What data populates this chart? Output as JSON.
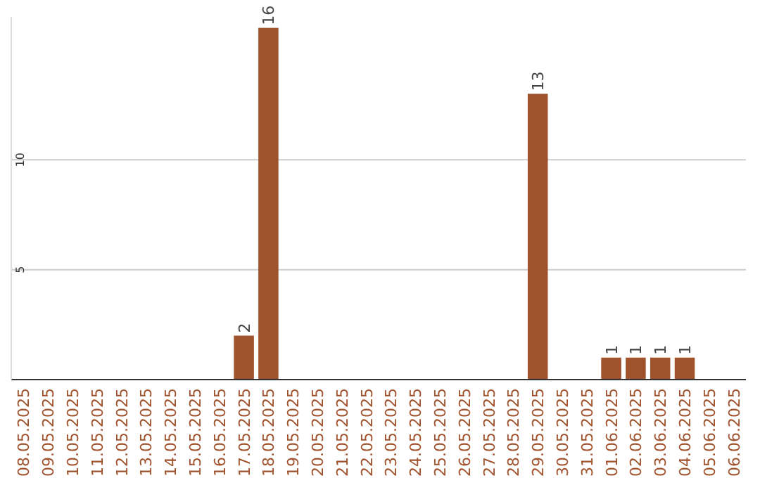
{
  "chart_data": {
    "type": "bar",
    "categories": [
      "08.05.2025",
      "09.05.2025",
      "10.05.2025",
      "11.05.2025",
      "12.05.2025",
      "13.05.2025",
      "14.05.2025",
      "15.05.2025",
      "16.05.2025",
      "17.05.2025",
      "18.05.2025",
      "19.05.2025",
      "20.05.2025",
      "21.05.2025",
      "22.05.2025",
      "23.05.2025",
      "24.05.2025",
      "25.05.2025",
      "26.05.2025",
      "27.05.2025",
      "28.05.2025",
      "29.05.2025",
      "30.05.2025",
      "31.05.2025",
      "01.06.2025",
      "02.06.2025",
      "03.06.2025",
      "04.06.2025",
      "05.06.2025",
      "06.06.2025"
    ],
    "values": [
      0,
      0,
      0,
      0,
      0,
      0,
      0,
      0,
      0,
      2,
      16,
      0,
      0,
      0,
      0,
      0,
      0,
      0,
      0,
      0,
      0,
      13,
      0,
      0,
      1,
      1,
      1,
      1,
      0,
      0
    ],
    "value_labels": [
      null,
      null,
      null,
      null,
      null,
      null,
      null,
      null,
      null,
      "2",
      "16",
      null,
      null,
      null,
      null,
      null,
      null,
      null,
      null,
      null,
      null,
      "13",
      null,
      null,
      "1",
      "1",
      "1",
      "1",
      null,
      null
    ],
    "color": "#a0522d",
    "ylim": [
      0,
      16.5
    ],
    "yticks": [
      5,
      10
    ],
    "grid": "y"
  }
}
